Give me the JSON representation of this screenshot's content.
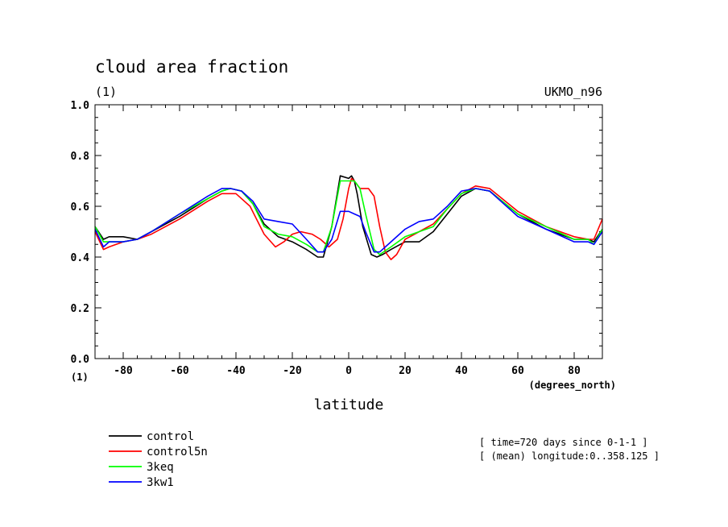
{
  "chart_data": {
    "type": "line",
    "title": "cloud area fraction",
    "units": "(1)",
    "model": "UKMO_n96",
    "xlabel": "latitude",
    "x_units": "(degrees_north)",
    "y_units_corner": "(1)",
    "xlim": [
      -90,
      90
    ],
    "ylim": [
      0.0,
      1.0
    ],
    "x_ticks": [
      -80,
      -60,
      -40,
      -20,
      0,
      20,
      40,
      60,
      80
    ],
    "y_ticks": [
      "0.0",
      "0.2",
      "0.4",
      "0.6",
      "0.8",
      "1.0"
    ],
    "legend_position": "bottom-left",
    "notes": [
      "[ time=720 days since 0-1-1 ]",
      "[ (mean) longitude:0..358.125 ]"
    ],
    "series": [
      {
        "name": "control",
        "color": "#000000",
        "x": [
          -90,
          -87,
          -85,
          -80,
          -75,
          -70,
          -60,
          -50,
          -45,
          -42,
          -38,
          -34,
          -30,
          -25,
          -20,
          -15,
          -11,
          -9,
          -6,
          -3,
          0,
          1,
          2,
          3,
          5,
          8,
          10,
          12,
          15,
          20,
          25,
          30,
          35,
          40,
          45,
          50,
          60,
          70,
          80,
          85,
          87,
          90
        ],
        "y": [
          0.52,
          0.47,
          0.48,
          0.48,
          0.47,
          0.5,
          0.56,
          0.63,
          0.66,
          0.67,
          0.66,
          0.61,
          0.53,
          0.48,
          0.46,
          0.43,
          0.4,
          0.4,
          0.52,
          0.72,
          0.71,
          0.72,
          0.7,
          0.65,
          0.52,
          0.41,
          0.4,
          0.41,
          0.43,
          0.46,
          0.46,
          0.5,
          0.57,
          0.64,
          0.67,
          0.66,
          0.57,
          0.51,
          0.47,
          0.47,
          0.46,
          0.51
        ]
      },
      {
        "name": "control5n",
        "color": "#ff0000",
        "x": [
          -90,
          -87,
          -85,
          -80,
          -75,
          -70,
          -60,
          -50,
          -45,
          -40,
          -35,
          -30,
          -26,
          -23,
          -20,
          -17,
          -13,
          -10,
          -7,
          -4,
          -2,
          0,
          1,
          2,
          4,
          7,
          9,
          11,
          13,
          15,
          17,
          20,
          25,
          30,
          35,
          40,
          45,
          50,
          60,
          70,
          80,
          85,
          87,
          90
        ],
        "y": [
          0.5,
          0.43,
          0.44,
          0.46,
          0.47,
          0.49,
          0.55,
          0.62,
          0.65,
          0.65,
          0.6,
          0.49,
          0.44,
          0.46,
          0.49,
          0.5,
          0.49,
          0.47,
          0.44,
          0.47,
          0.55,
          0.67,
          0.71,
          0.7,
          0.67,
          0.67,
          0.64,
          0.52,
          0.42,
          0.39,
          0.41,
          0.47,
          0.5,
          0.53,
          0.59,
          0.65,
          0.68,
          0.67,
          0.58,
          0.52,
          0.48,
          0.47,
          0.47,
          0.55
        ]
      },
      {
        "name": "3keq",
        "color": "#00ff00",
        "x": [
          -90,
          -87,
          -85,
          -80,
          -75,
          -70,
          -60,
          -50,
          -45,
          -42,
          -38,
          -34,
          -30,
          -25,
          -20,
          -15,
          -11,
          -9,
          -6,
          -3,
          0,
          2,
          4,
          6,
          9,
          11,
          15,
          20,
          25,
          30,
          35,
          40,
          45,
          50,
          60,
          70,
          80,
          85,
          87,
          90
        ],
        "y": [
          0.52,
          0.46,
          0.46,
          0.46,
          0.47,
          0.5,
          0.57,
          0.63,
          0.66,
          0.67,
          0.66,
          0.61,
          0.52,
          0.49,
          0.48,
          0.45,
          0.42,
          0.42,
          0.52,
          0.7,
          0.7,
          0.7,
          0.67,
          0.57,
          0.43,
          0.41,
          0.44,
          0.48,
          0.5,
          0.52,
          0.59,
          0.65,
          0.67,
          0.66,
          0.57,
          0.52,
          0.47,
          0.47,
          0.45,
          0.51
        ]
      },
      {
        "name": "3kw1",
        "color": "#0000ff",
        "x": [
          -90,
          -87,
          -85,
          -80,
          -75,
          -70,
          -60,
          -50,
          -45,
          -42,
          -38,
          -34,
          -30,
          -25,
          -20,
          -15,
          -11,
          -9,
          -6,
          -3,
          0,
          2,
          4,
          6,
          9,
          11,
          15,
          20,
          25,
          30,
          35,
          40,
          45,
          50,
          60,
          70,
          80,
          85,
          87,
          90
        ],
        "y": [
          0.51,
          0.44,
          0.46,
          0.46,
          0.47,
          0.5,
          0.57,
          0.64,
          0.67,
          0.67,
          0.66,
          0.62,
          0.55,
          0.54,
          0.53,
          0.47,
          0.42,
          0.42,
          0.47,
          0.58,
          0.58,
          0.57,
          0.56,
          0.5,
          0.42,
          0.42,
          0.46,
          0.51,
          0.54,
          0.55,
          0.6,
          0.66,
          0.67,
          0.66,
          0.56,
          0.51,
          0.46,
          0.46,
          0.45,
          0.5
        ]
      }
    ]
  }
}
